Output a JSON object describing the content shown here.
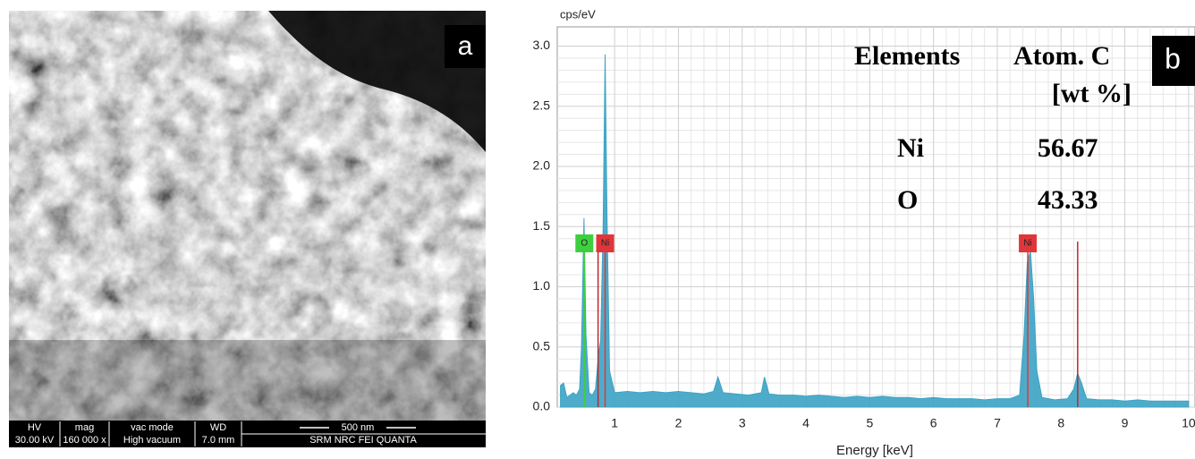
{
  "sem": {
    "panel_label": "a",
    "info_headers": [
      "HV",
      "mag",
      "vac mode",
      "WD"
    ],
    "info_values": [
      "30.00 kV",
      "160 000 x",
      "High vacuum",
      "7.0 mm"
    ],
    "scale_bar": "500 nm",
    "instrument": "SRM NRC FEI QUANTA"
  },
  "chart_data": {
    "type": "area",
    "panel_label": "b",
    "y_label": "cps/eV",
    "x_label": "Energy [keV]",
    "color": "#3ba3c4",
    "x": [
      0.15,
      0.2,
      0.25,
      0.3,
      0.35,
      0.4,
      0.45,
      0.48,
      0.52,
      0.55,
      0.6,
      0.65,
      0.7,
      0.75,
      0.78,
      0.82,
      0.85,
      0.88,
      0.92,
      1.0,
      1.2,
      1.4,
      1.6,
      1.8,
      2.0,
      2.2,
      2.4,
      2.55,
      2.62,
      2.7,
      2.9,
      3.1,
      3.3,
      3.35,
      3.42,
      3.6,
      3.8,
      4.0,
      4.2,
      4.4,
      4.6,
      4.8,
      5.0,
      5.2,
      5.4,
      5.6,
      5.8,
      6.0,
      6.2,
      6.4,
      6.6,
      6.8,
      7.0,
      7.2,
      7.35,
      7.42,
      7.47,
      7.52,
      7.57,
      7.62,
      7.7,
      7.9,
      8.1,
      8.2,
      8.26,
      8.32,
      8.4,
      8.6,
      8.8,
      9.0,
      9.2,
      9.4,
      9.6,
      9.8,
      10.0
    ],
    "values": [
      0.18,
      0.2,
      0.08,
      0.1,
      0.12,
      0.1,
      0.15,
      0.5,
      1.57,
      0.6,
      0.12,
      0.1,
      0.15,
      0.45,
      0.55,
      1.5,
      2.93,
      1.6,
      0.3,
      0.12,
      0.13,
      0.12,
      0.13,
      0.12,
      0.13,
      0.12,
      0.11,
      0.13,
      0.25,
      0.12,
      0.11,
      0.1,
      0.12,
      0.25,
      0.11,
      0.1,
      0.1,
      0.09,
      0.1,
      0.09,
      0.08,
      0.09,
      0.08,
      0.09,
      0.08,
      0.08,
      0.07,
      0.08,
      0.07,
      0.07,
      0.07,
      0.06,
      0.07,
      0.07,
      0.1,
      0.6,
      1.2,
      1.3,
      0.9,
      0.3,
      0.08,
      0.06,
      0.07,
      0.15,
      0.28,
      0.2,
      0.07,
      0.06,
      0.06,
      0.05,
      0.06,
      0.05,
      0.05,
      0.05,
      0.05
    ],
    "xlim": [
      0.1,
      10.1
    ],
    "ylim": [
      0,
      3.16
    ],
    "xticks": [
      1,
      2,
      3,
      4,
      5,
      6,
      7,
      8,
      9,
      10
    ],
    "yticks": [
      {
        "value": 0,
        "label": "0.0"
      },
      0.5,
      {
        "value": 1,
        "label": "1.0"
      },
      1.5,
      {
        "value": 2,
        "label": "2.0"
      },
      2.5,
      {
        "value": 3,
        "label": "3.0"
      }
    ],
    "grid": true,
    "element_markers": [
      {
        "label": "O",
        "x": 0.525,
        "color": "#3ecf3e"
      },
      {
        "label": "Ni",
        "x": 0.851,
        "color": "#e0363a"
      },
      {
        "label": "Ni",
        "x": 7.478,
        "color": "#e0363a"
      }
    ],
    "marker_lines": [
      {
        "x": 0.74,
        "color": "#c0282c"
      },
      {
        "x": 8.26,
        "color": "#c0282c"
      }
    ],
    "composition_table": {
      "header": [
        "Elements",
        "Atom. C"
      ],
      "unit": "[wt %]",
      "rows": [
        [
          "Ni",
          "56.67"
        ],
        [
          "O",
          "43.33"
        ]
      ]
    }
  }
}
